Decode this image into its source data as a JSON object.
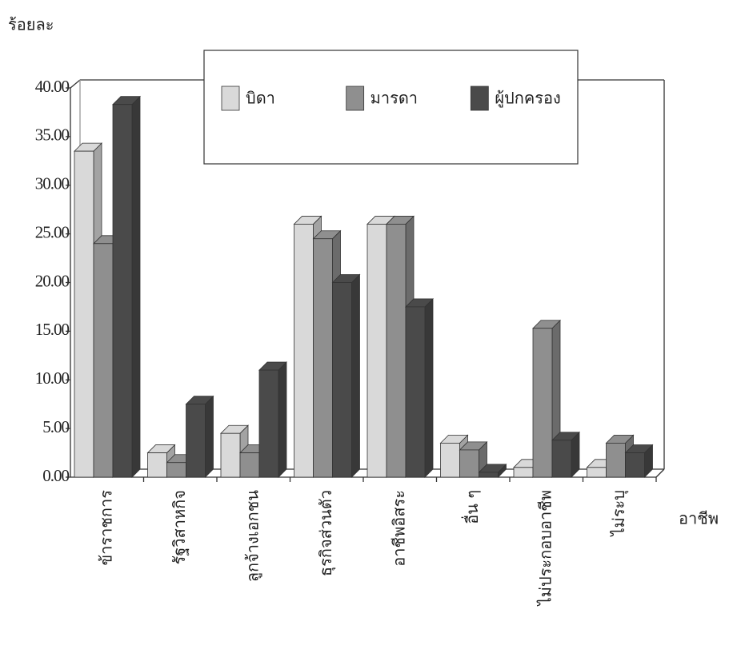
{
  "chart_data": {
    "type": "bar3d",
    "y_label": "ร้อยละ",
    "x_label": "อาชีพ",
    "categories": [
      "ข้าราชการ",
      "รัฐวิสาหกิจ",
      "ลูกจ้างเอกชน",
      "ธุรกิจส่วนตัว",
      "อาชีพอิสระ",
      "อื่น ๆ",
      "ไม่ประกอบอาชีพ",
      "ไม่ระบุ"
    ],
    "series": [
      {
        "name": "บิดา",
        "color": "#d9d9d9",
        "values": [
          33.5,
          2.5,
          4.5,
          26,
          26,
          3.5,
          1,
          1
        ]
      },
      {
        "name": "มารดา",
        "color": "#8f8f8f",
        "values": [
          24,
          1.5,
          2.5,
          24.5,
          26,
          2.8,
          15.3,
          3.5
        ]
      },
      {
        "name": "ผู้ปกครอง",
        "color": "#4a4a4a",
        "values": [
          38.3,
          7.5,
          11,
          20,
          17.5,
          0.5,
          3.8,
          2.5
        ]
      }
    ],
    "ylim": [
      0,
      40
    ],
    "yticks": [
      {
        "value": 0,
        "label": "0.00"
      },
      {
        "value": 5,
        "label": "5.00"
      },
      {
        "value": 10,
        "label": "10.00"
      },
      {
        "value": 15,
        "label": "15.00"
      },
      {
        "value": 20,
        "label": "20.00"
      },
      {
        "value": 25,
        "label": "25.00"
      },
      {
        "value": 30,
        "label": "30.00"
      },
      {
        "value": 35,
        "label": "35.00"
      },
      {
        "value": 40,
        "label": "40.00"
      }
    ],
    "legend": "top"
  }
}
